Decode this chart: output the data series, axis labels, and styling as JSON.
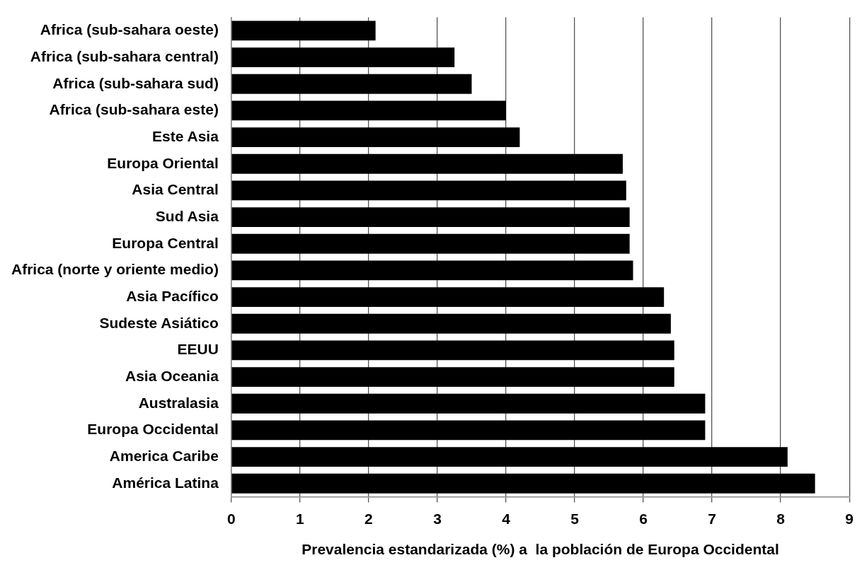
{
  "chart_data": {
    "type": "bar",
    "orientation": "horizontal",
    "xlabel": "Prevalencia estandarizada (%) a  la población de Europa Occidental",
    "categories": [
      "Africa (sub-sahara oeste)",
      "Africa (sub-sahara central)",
      "Africa (sub-sahara sud)",
      "Africa (sub-sahara este)",
      "Este Asia",
      "Europa Oriental",
      "Asia Central",
      "Sud Asia",
      "Europa Central",
      "Africa (norte y oriente medio)",
      "Asia Pacífico",
      "Sudeste Asiático",
      "EEUU",
      "Asia Oceania",
      "Australasia",
      "Europa Occidental",
      "America Caribe",
      "América Latina"
    ],
    "values": [
      2.1,
      3.25,
      3.5,
      4.0,
      4.2,
      5.7,
      5.75,
      5.8,
      5.8,
      5.85,
      6.3,
      6.4,
      6.45,
      6.45,
      6.9,
      6.9,
      8.1,
      8.5
    ],
    "color": "#000000",
    "xlim": [
      0,
      9
    ],
    "xticks": [
      0,
      1,
      2,
      3,
      4,
      5,
      6,
      7,
      8,
      9
    ],
    "grid": "x",
    "legend": false
  }
}
